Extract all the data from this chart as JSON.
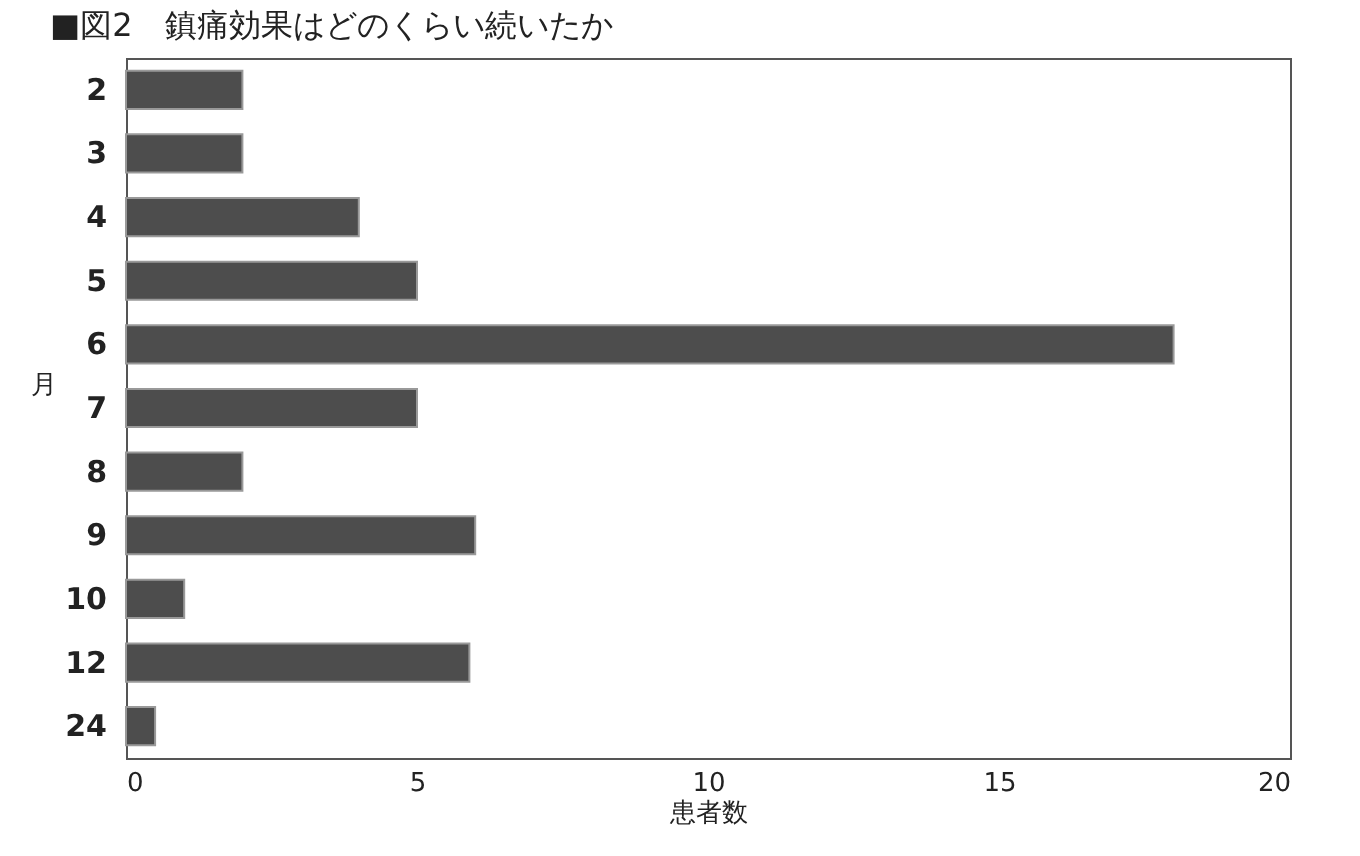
{
  "chart_data": {
    "type": "bar",
    "orientation": "horizontal",
    "title": "■図2　鎮痛効果はどのくらい続いたか",
    "xlabel": "患者数",
    "ylabel": "月",
    "categories": [
      "2",
      "3",
      "4",
      "5",
      "6",
      "7",
      "8",
      "9",
      "10",
      "12",
      "24"
    ],
    "values": [
      2,
      2,
      4,
      5,
      18,
      5,
      2,
      6,
      1,
      5.9,
      0.5
    ],
    "color": "#4d4d4d",
    "xlim": [
      0,
      20
    ],
    "xticks": [
      0,
      5,
      10,
      15,
      20
    ],
    "grid": false
  }
}
